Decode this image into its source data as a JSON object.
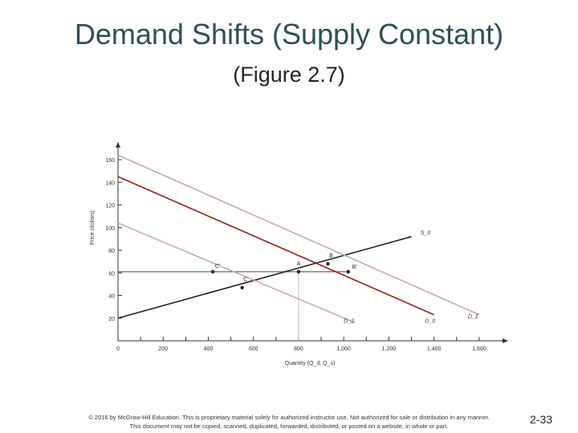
{
  "slide": {
    "title": "Demand Shifts (Supply Constant)",
    "subtitle": "(Figure 2.7)",
    "footer_line1": "© 2016 by McGraw-Hill Education. This is proprietary material solely for authorized instructor use. Not authorized for sale or distribution in any manner.",
    "footer_line2": "This document may not be copied, scanned, duplicated, forwarded, distributed, or posted on a website, in whole or part.",
    "page_number": "2-33"
  },
  "chart_data": {
    "type": "line",
    "title": "",
    "xlabel": "Quantity (Q_d, Q_s)",
    "ylabel": "Price (dollars)",
    "xlim": [
      0,
      1700
    ],
    "ylim": [
      0,
      170
    ],
    "x_ticks": [
      0,
      200,
      400,
      600,
      800,
      1000,
      1200,
      1400,
      1600
    ],
    "x_tick_labels": [
      "0",
      "200",
      "400",
      "600",
      "800",
      "1,000",
      "1,200",
      "1,400",
      "1,600"
    ],
    "y_ticks": [
      20,
      40,
      60,
      80,
      100,
      120,
      140,
      160
    ],
    "y_tick_labels": [
      "20",
      "40",
      "60",
      "80",
      "100",
      "120",
      "140",
      "160"
    ],
    "grid": false,
    "colors": {
      "supply": "#222222",
      "demand_0": "#9b1c1c",
      "demand_shift": "#c8a8a8",
      "guide": "#444444",
      "axis": "#333333"
    },
    "series": [
      {
        "name": "S_0",
        "key": "supply",
        "points": [
          [
            0,
            20
          ],
          [
            1300,
            92
          ]
        ],
        "label_at": [
          1340,
          94
        ]
      },
      {
        "name": "D_0",
        "key": "demand_0",
        "points": [
          [
            0,
            145
          ],
          [
            1400,
            23
          ]
        ],
        "label_at": [
          1360,
          16
        ]
      },
      {
        "name": "D_1",
        "key": "demand_shift",
        "points": [
          [
            0,
            164
          ],
          [
            1600,
            23
          ]
        ],
        "label_at": [
          1550,
          20
        ]
      },
      {
        "name": "D_2",
        "key": "demand_shift",
        "points": [
          [
            0,
            104
          ],
          [
            1050,
            16
          ]
        ],
        "label_at": [
          1000,
          16
        ]
      }
    ],
    "points": [
      {
        "label": "A",
        "x": 800,
        "y": 61,
        "label_dx": 0,
        "label_dy": -8
      },
      {
        "label": "B",
        "x": 930,
        "y": 68,
        "label_dx": 4,
        "label_dy": -8
      },
      {
        "label": "B'",
        "x": 1020,
        "y": 61,
        "label_dx": 8,
        "label_dy": -4
      },
      {
        "label": "C",
        "x": 550,
        "y": 47,
        "label_dx": 4,
        "label_dy": -8
      },
      {
        "label": "C'",
        "x": 420,
        "y": 61,
        "label_dx": 6,
        "label_dy": -5
      }
    ],
    "guides": [
      {
        "type": "hline",
        "y": 61,
        "x_from": 0,
        "x_to": 1020
      },
      {
        "type": "vline",
        "x": 800,
        "y_from": 0,
        "y_to": 61
      }
    ]
  }
}
